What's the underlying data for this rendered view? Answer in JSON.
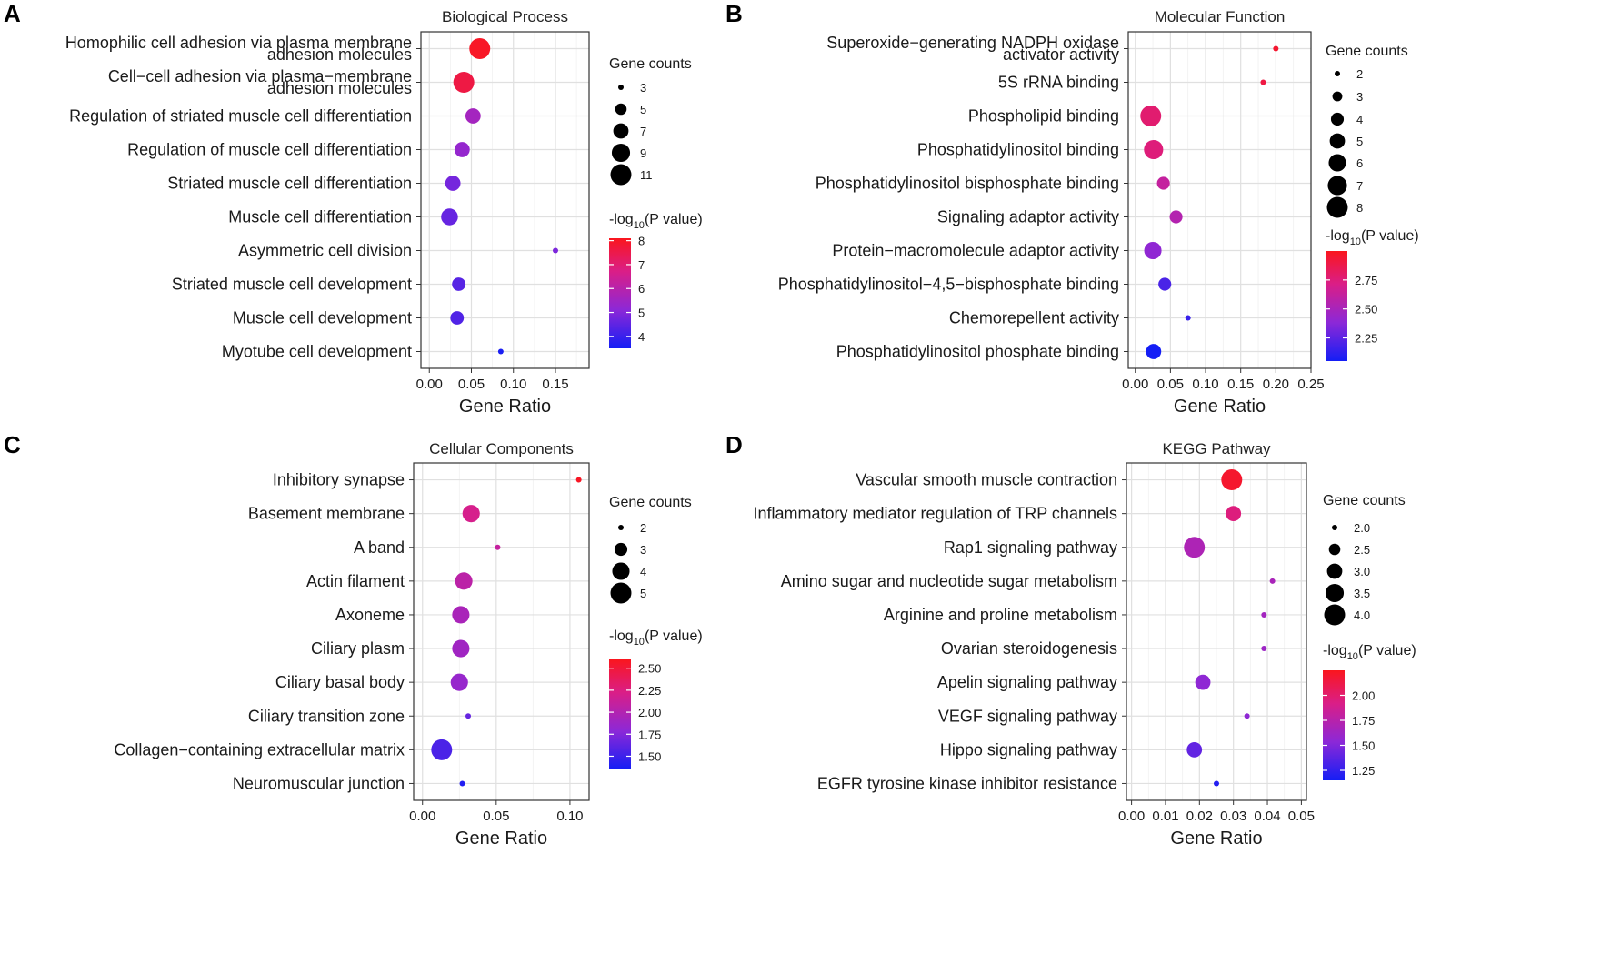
{
  "chart_data": [
    {
      "type": "scatter",
      "panel_letter": "A",
      "title": "Biological Process",
      "xlabel": "Gene Ratio",
      "xlim": [
        -0.01,
        0.19
      ],
      "xticks": [
        0.0,
        0.05,
        0.1,
        0.15
      ],
      "xtick_labels": [
        "0.00",
        "0.05",
        "0.10",
        "0.15"
      ],
      "categories": [
        "Homophilic cell adhesion via plasma membrane\nadhesion molecules",
        "Cell−cell adhesion via plasma−membrane\nadhesion molecules",
        "Regulation of striated muscle cell differentiation",
        "Regulation of muscle cell differentiation",
        "Striated muscle cell differentiation",
        "Muscle cell differentiation",
        "Asymmetric cell division",
        "Striated muscle cell development",
        "Muscle cell development",
        "Myotube cell development"
      ],
      "x": [
        0.06,
        0.041,
        0.052,
        0.039,
        0.028,
        0.024,
        0.15,
        0.035,
        0.033,
        0.085
      ],
      "gene_counts": [
        11,
        11,
        7,
        7,
        7,
        8,
        3,
        6,
        6,
        3
      ],
      "neg_log10_p": [
        8.0,
        7.6,
        5.6,
        5.3,
        4.8,
        4.6,
        4.9,
        4.4,
        4.3,
        3.6
      ],
      "size_legend_title": "Gene counts",
      "size_legend": [
        3,
        5,
        7,
        9,
        11
      ],
      "size_legend_labels": [
        "3",
        "5",
        "7",
        "9",
        "11"
      ],
      "size_range": [
        3,
        11
      ],
      "color_legend_title": "-log10(P value)",
      "color_range": [
        3.5,
        8.1
      ],
      "color_ticks": [
        4,
        5,
        6,
        7,
        8
      ],
      "color_tick_labels": [
        "4",
        "5",
        "6",
        "7",
        "8"
      ]
    },
    {
      "type": "scatter",
      "panel_letter": "B",
      "title": "Molecular Function",
      "xlabel": "Gene Ratio",
      "xlim": [
        -0.01,
        0.25
      ],
      "xticks": [
        0.0,
        0.05,
        0.1,
        0.15,
        0.2,
        0.25
      ],
      "xtick_labels": [
        "0.00",
        "0.05",
        "0.10",
        "0.15",
        "0.20",
        "0.25"
      ],
      "categories": [
        "Superoxide−generating NADPH oxidase\nactivator activity",
        "5S rRNA binding",
        "Phospholipid binding",
        "Phosphatidylinositol binding",
        "Phosphatidylinositol bisphosphate binding",
        "Signaling adaptor activity",
        "Protein−macromolecule adaptor activity",
        "Phosphatidylinositol−4,5−bisphosphate binding",
        "Chemorepellent activity",
        "Phosphatidylinositol phosphate binding"
      ],
      "x": [
        0.2,
        0.182,
        0.022,
        0.026,
        0.04,
        0.058,
        0.025,
        0.042,
        0.075,
        0.026
      ],
      "gene_counts": [
        2,
        2,
        8,
        7,
        4,
        4,
        6,
        4,
        2,
        5
      ],
      "neg_log10_p": [
        2.95,
        2.9,
        2.78,
        2.75,
        2.62,
        2.55,
        2.4,
        2.2,
        2.15,
        2.05
      ],
      "size_legend_title": "Gene counts",
      "size_legend": [
        2,
        3,
        4,
        5,
        6,
        7,
        8
      ],
      "size_legend_labels": [
        "2",
        "3",
        "4",
        "5",
        "6",
        "7",
        "8"
      ],
      "size_range": [
        2,
        8
      ],
      "color_legend_title": "-log10(P value)",
      "color_range": [
        2.05,
        3.0
      ],
      "color_ticks": [
        2.25,
        2.5,
        2.75
      ],
      "color_tick_labels": [
        "2.25",
        "2.50",
        "2.75"
      ]
    },
    {
      "type": "scatter",
      "panel_letter": "C",
      "title": "Cellular Components",
      "xlabel": "Gene Ratio",
      "xlim": [
        -0.006,
        0.113
      ],
      "xticks": [
        0.0,
        0.05,
        0.1
      ],
      "xtick_labels": [
        "0.00",
        "0.05",
        "0.10"
      ],
      "categories": [
        "Inhibitory synapse",
        "Basement membrane",
        "A band",
        "Actin filament",
        "Axoneme",
        "Ciliary plasm",
        "Ciliary basal body",
        "Ciliary transition zone",
        "Collagen−containing extracellular matrix",
        "Neuromuscular junction"
      ],
      "x": [
        0.106,
        0.033,
        0.051,
        0.028,
        0.026,
        0.026,
        0.025,
        0.031,
        0.013,
        0.027
      ],
      "gene_counts": [
        2,
        4,
        2,
        4,
        4,
        4,
        4,
        2,
        5,
        2
      ],
      "neg_log10_p": [
        2.58,
        2.2,
        2.1,
        2.05,
        1.95,
        1.9,
        1.85,
        1.65,
        1.55,
        1.4
      ],
      "size_legend_title": "Gene counts",
      "size_legend": [
        2,
        3,
        4,
        5
      ],
      "size_legend_labels": [
        "2",
        "3",
        "4",
        "5"
      ],
      "size_range": [
        2,
        5
      ],
      "color_legend_title": "-log10(P value)",
      "color_range": [
        1.35,
        2.6
      ],
      "color_ticks": [
        1.5,
        1.75,
        2.0,
        2.25,
        2.5
      ],
      "color_tick_labels": [
        "1.50",
        "1.75",
        "2.00",
        "2.25",
        "2.50"
      ]
    },
    {
      "type": "scatter",
      "panel_letter": "D",
      "title": "KEGG Pathway",
      "xlabel": "Gene Ratio",
      "xlim": [
        -0.0015,
        0.0515
      ],
      "xticks": [
        0.0,
        0.01,
        0.02,
        0.03,
        0.04,
        0.05
      ],
      "xtick_labels": [
        "0.00",
        "0.01",
        "0.02",
        "0.03",
        "0.04",
        "0.05"
      ],
      "categories": [
        "Vascular smooth muscle contraction",
        "Inflammatory mediator regulation of TRP channels",
        "Rap1 signaling pathway",
        "Amino sugar and nucleotide sugar metabolism",
        "Arginine and proline metabolism",
        "Ovarian steroidogenesis",
        "Apelin signaling pathway",
        "VEGF signaling pathway",
        "Hippo signaling pathway",
        "EGFR tyrosine kinase inhibitor resistance"
      ],
      "x": [
        0.0295,
        0.03,
        0.0185,
        0.0415,
        0.039,
        0.039,
        0.021,
        0.034,
        0.0185,
        0.025
      ],
      "gene_counts": [
        4,
        3,
        4,
        2,
        2,
        2,
        3,
        2,
        3,
        2
      ],
      "neg_log10_p": [
        2.2,
        1.95,
        1.7,
        1.68,
        1.65,
        1.62,
        1.55,
        1.55,
        1.4,
        1.2
      ],
      "size_legend_title": "Gene counts",
      "size_legend": [
        2.0,
        2.5,
        3.0,
        3.5,
        4.0
      ],
      "size_legend_labels": [
        "2.0",
        "2.5",
        "3.0",
        "3.5",
        "4.0"
      ],
      "size_range": [
        2,
        4
      ],
      "color_legend_title": "-log10(P value)",
      "color_range": [
        1.15,
        2.25
      ],
      "color_ticks": [
        1.25,
        1.5,
        1.75,
        2.0
      ],
      "color_tick_labels": [
        "1.25",
        "1.50",
        "1.75",
        "2.00"
      ]
    }
  ]
}
